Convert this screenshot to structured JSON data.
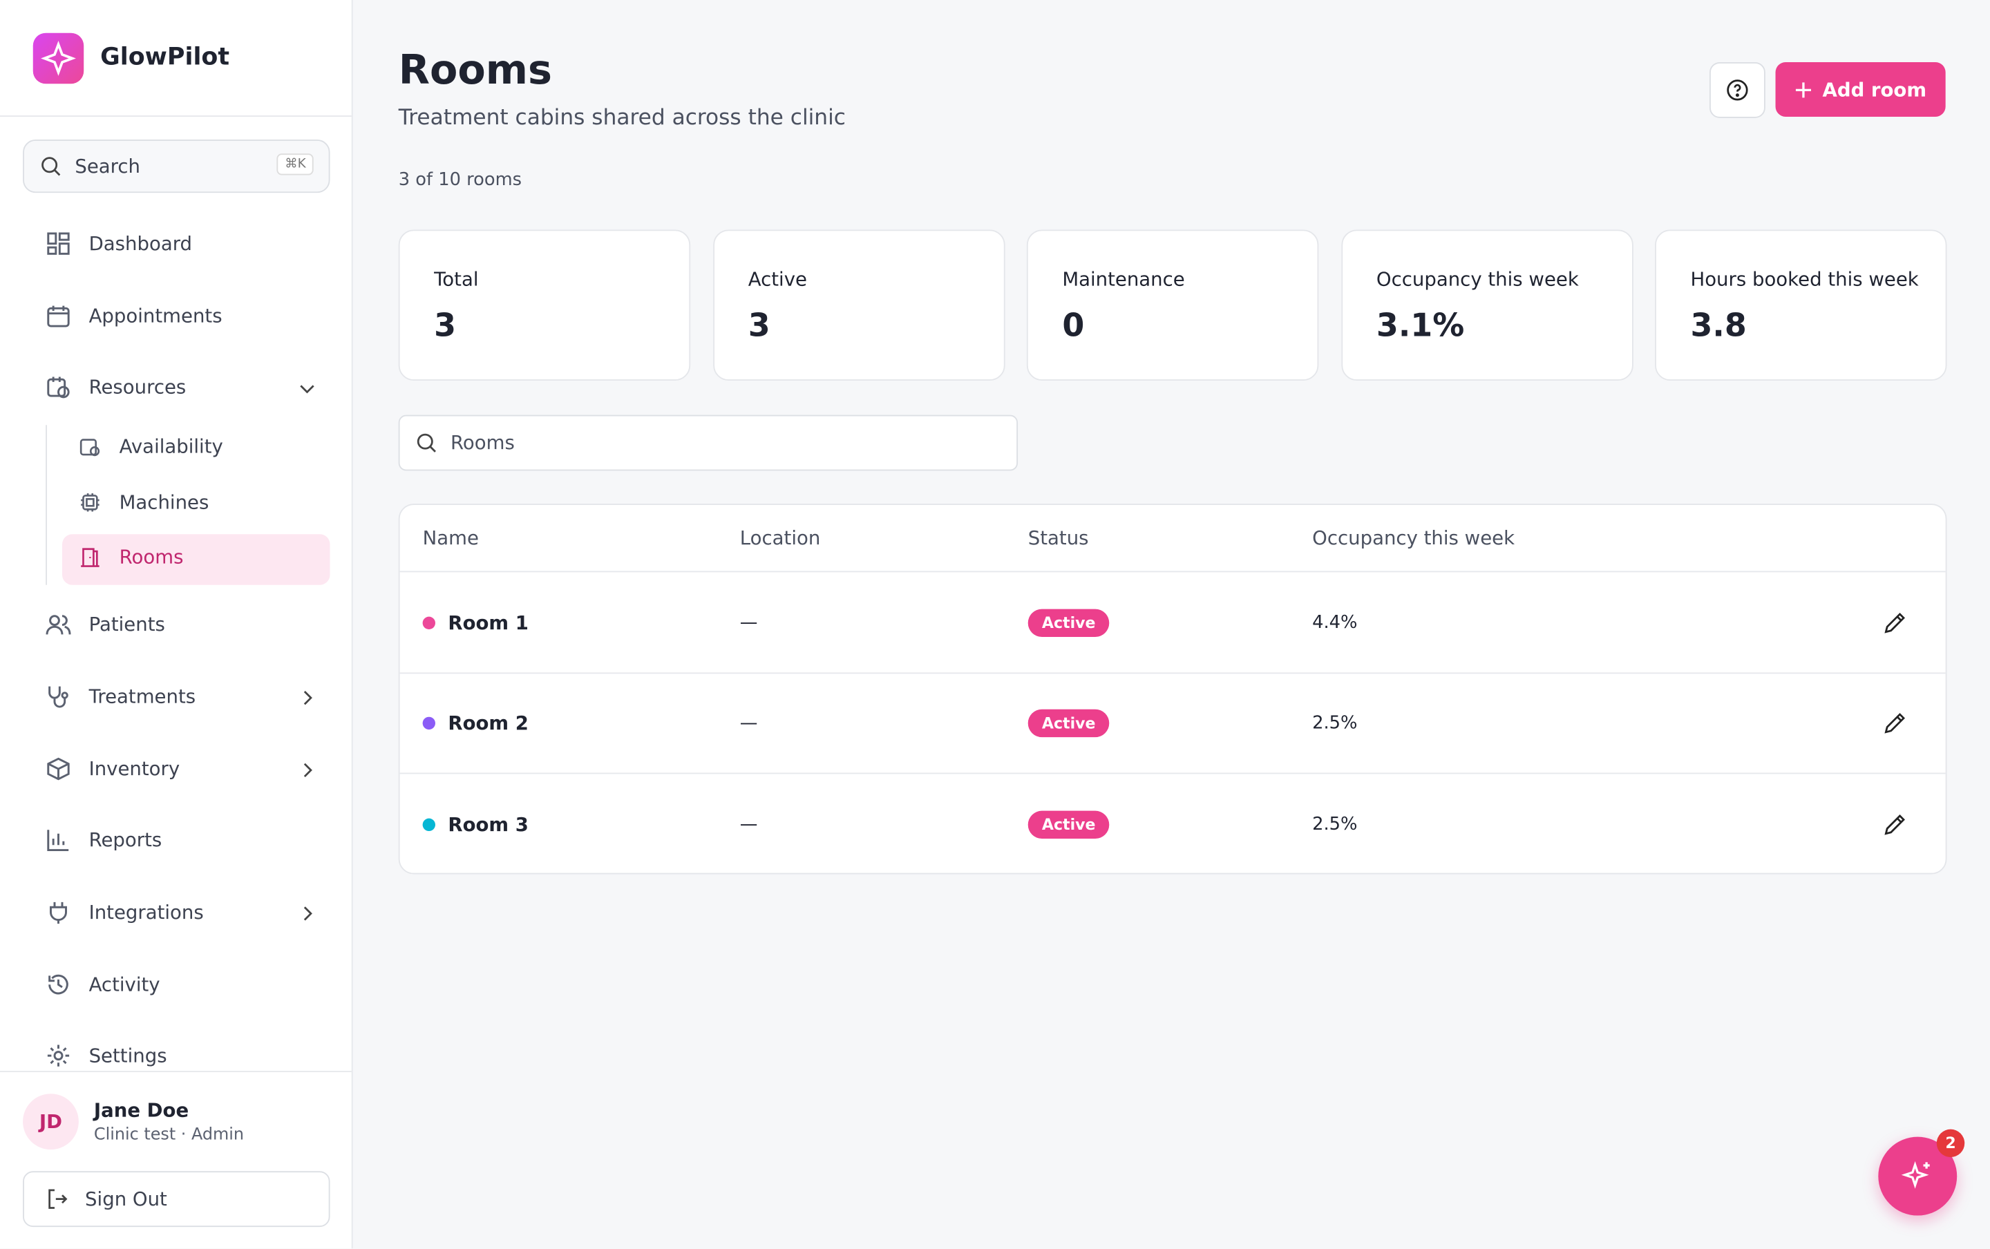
{
  "brand": "GlowPilot",
  "search": {
    "placeholder": "Search",
    "shortcut": "⌘K"
  },
  "nav": {
    "items": [
      "Dashboard",
      "Appointments",
      "Resources",
      "Patients",
      "Treatments",
      "Inventory",
      "Reports",
      "Integrations",
      "Activity",
      "Settings"
    ],
    "resources_children": [
      "Availability",
      "Machines",
      "Rooms"
    ]
  },
  "page": {
    "title": "Rooms",
    "subtitle": "Treatment cabins shared across the clinic",
    "count": "3 of 10 rooms",
    "add_button": "Add room"
  },
  "stats": [
    {
      "label": "Total",
      "value": "3"
    },
    {
      "label": "Active",
      "value": "3"
    },
    {
      "label": "Maintenance",
      "value": "0"
    },
    {
      "label": "Occupancy this week",
      "value": "3.1%"
    },
    {
      "label": "Hours booked this week",
      "value": "3.8"
    }
  ],
  "table": {
    "search_placeholder": "Rooms",
    "columns": [
      "Name",
      "Location",
      "Status",
      "Occupancy this week"
    ],
    "rows": [
      {
        "name": "Room 1",
        "color": "#ec4899",
        "location": "—",
        "status": "Active",
        "occupancy": "4.4%"
      },
      {
        "name": "Room 2",
        "color": "#8b5cf6",
        "location": "—",
        "status": "Active",
        "occupancy": "2.5%"
      },
      {
        "name": "Room 3",
        "color": "#06b6d4",
        "location": "—",
        "status": "Active",
        "occupancy": "2.5%"
      }
    ]
  },
  "user": {
    "initials": "JD",
    "name": "Jane Doe",
    "role": "Clinic test · Admin",
    "sign_out": "Sign Out"
  },
  "assistant": {
    "badge": "2"
  }
}
